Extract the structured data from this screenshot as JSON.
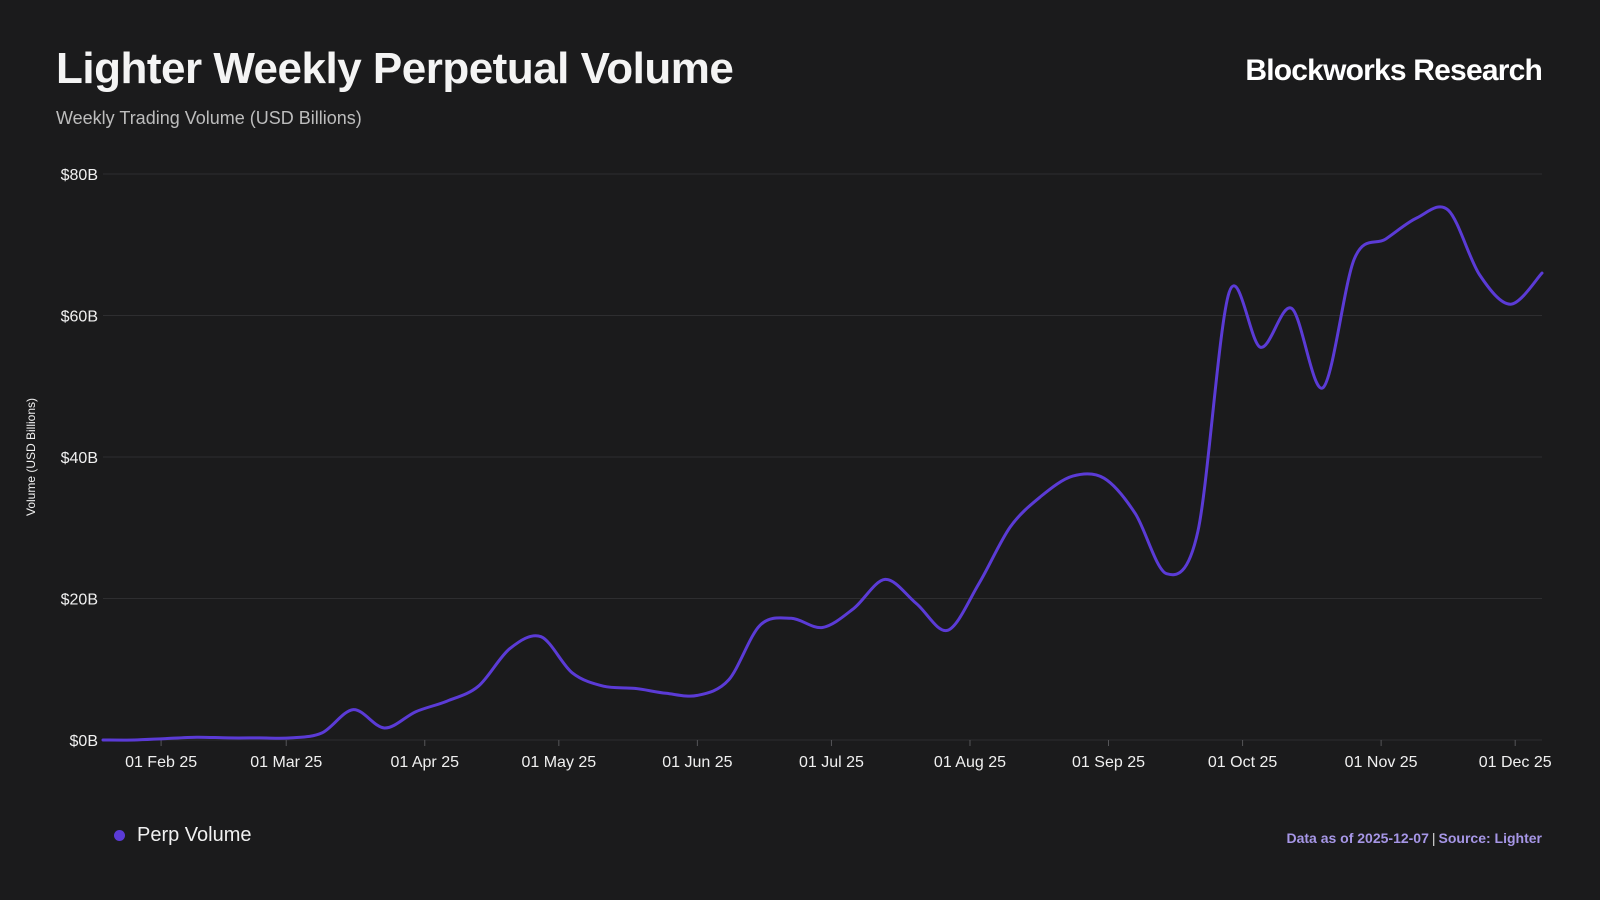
{
  "header": {
    "title": "Lighter Weekly Perpetual Volume",
    "subtitle": "Weekly Trading Volume (USD Billions)",
    "brand": "Blockworks Research"
  },
  "footer": {
    "data_as_of": "Data as of 2025-12-07",
    "separator": "|",
    "source": "Source: Lighter"
  },
  "colors": {
    "background": "#1b1b1c",
    "line": "#5b3bd6",
    "grid": "#2e2e30",
    "axis_text": "#f0f0f0",
    "source_text": "#a696e6"
  },
  "chart_data": {
    "type": "line",
    "title": "Lighter Weekly Perpetual Volume",
    "subtitle": "Weekly Trading Volume (USD Billions)",
    "xlabel": "",
    "ylabel": "Volume (USD Billions)",
    "ylim": [
      0,
      80
    ],
    "yticks": [
      0,
      20,
      40,
      60,
      80
    ],
    "ytick_labels": [
      "$0B",
      "$20B",
      "$40B",
      "$60B",
      "$80B"
    ],
    "grid": true,
    "legend_position": "bottom-left",
    "x_start": "2025-01-19",
    "x_end": "2025-12-07",
    "xticks": [
      {
        "date": "2025-02-01",
        "label": "01 Feb 25"
      },
      {
        "date": "2025-03-01",
        "label": "01 Mar 25"
      },
      {
        "date": "2025-04-01",
        "label": "01 Apr 25"
      },
      {
        "date": "2025-05-01",
        "label": "01 May 25"
      },
      {
        "date": "2025-06-01",
        "label": "01 Jun 25"
      },
      {
        "date": "2025-07-01",
        "label": "01 Jul 25"
      },
      {
        "date": "2025-08-01",
        "label": "01 Aug 25"
      },
      {
        "date": "2025-09-01",
        "label": "01 Sep 25"
      },
      {
        "date": "2025-10-01",
        "label": "01 Oct 25"
      },
      {
        "date": "2025-11-01",
        "label": "01 Nov 25"
      },
      {
        "date": "2025-12-01",
        "label": "01 Dec 25"
      }
    ],
    "series": [
      {
        "name": "Perp Volume",
        "color": "#5b3bd6",
        "x": [
          "2025-01-19",
          "2025-01-26",
          "2025-02-02",
          "2025-02-09",
          "2025-02-16",
          "2025-02-23",
          "2025-03-02",
          "2025-03-09",
          "2025-03-16",
          "2025-03-23",
          "2025-03-30",
          "2025-04-06",
          "2025-04-13",
          "2025-04-20",
          "2025-04-27",
          "2025-05-04",
          "2025-05-11",
          "2025-05-18",
          "2025-05-25",
          "2025-06-01",
          "2025-06-08",
          "2025-06-15",
          "2025-06-22",
          "2025-06-29",
          "2025-07-06",
          "2025-07-13",
          "2025-07-20",
          "2025-07-27",
          "2025-08-03",
          "2025-08-10",
          "2025-08-17",
          "2025-08-24",
          "2025-08-31",
          "2025-09-07",
          "2025-09-14",
          "2025-09-21",
          "2025-09-28",
          "2025-10-05",
          "2025-10-12",
          "2025-10-19",
          "2025-10-26",
          "2025-11-02",
          "2025-11-09",
          "2025-11-16",
          "2025-11-23",
          "2025-11-30",
          "2025-12-07"
        ],
        "values": [
          0,
          0,
          0.2,
          0.4,
          0.3,
          0.3,
          0.3,
          1.0,
          4.3,
          1.7,
          4.0,
          5.5,
          7.6,
          12.9,
          14.6,
          9.5,
          7.6,
          7.3,
          6.6,
          6.3,
          8.5,
          16.2,
          17.2,
          15.9,
          18.6,
          22.7,
          19.3,
          15.5,
          22.1,
          30.1,
          34.5,
          37.3,
          37.0,
          32.0,
          23.5,
          29.5,
          63.3,
          55.5,
          61.0,
          49.8,
          68.0,
          70.8,
          73.8,
          74.9,
          65.8,
          61.6,
          66.0
        ]
      }
    ]
  }
}
